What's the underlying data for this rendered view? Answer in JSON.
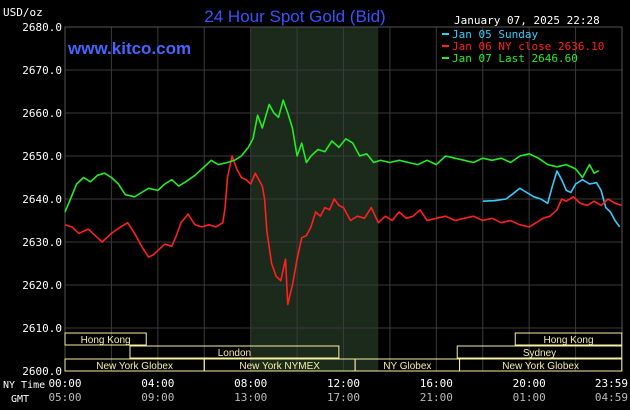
{
  "header": {
    "title": "24 Hour Spot Gold (Bid)",
    "unit": "USD/oz",
    "timestamp": "January 07, 2025 22:28",
    "site": "www.kitco.com"
  },
  "legend": [
    {
      "label": "Jan 05 Sunday",
      "color": "#33ccff"
    },
    {
      "label": "Jan 06 NY close 2636.10",
      "color": "#ff2020"
    },
    {
      "label": "Jan 07 Last 2646.60",
      "color": "#22ee22"
    }
  ],
  "time_rows": {
    "ny_label": "NY Time",
    "gmt_label": "GMT",
    "ny_ticks": [
      "00:00",
      "04:00",
      "08:00",
      "12:00",
      "16:00",
      "20:00",
      "23:59"
    ],
    "gmt_ticks": [
      "05:00",
      "09:00",
      "13:00",
      "17:00",
      "21:00",
      "01:00",
      "04:59"
    ]
  },
  "sessions": [
    {
      "label": "Hong Kong",
      "row": 0,
      "from": 0,
      "to": 3.5
    },
    {
      "label": "Hong Kong",
      "row": 0,
      "from": 19.4,
      "to": 23.99
    },
    {
      "label": "London",
      "row": 1,
      "from": 2.8,
      "to": 11.8
    },
    {
      "label": "Sydney",
      "row": 1,
      "from": 16.9,
      "to": 23.99
    },
    {
      "label": "New York Globex",
      "row": 2,
      "from": 0,
      "to": 6.0
    },
    {
      "label": "New York NYMEX",
      "row": 2,
      "from": 6.0,
      "to": 12.5
    },
    {
      "label": "NY Globex",
      "row": 2,
      "from": 12.5,
      "to": 17.0
    },
    {
      "label": "New York Globex",
      "row": 2,
      "from": 17.0,
      "to": 23.99
    }
  ],
  "colors": {
    "background": "#000000",
    "grid": "#3a3a3a",
    "highlight": "#1c2a1c",
    "title": "#3355ff",
    "site": "#4466ff",
    "session_fill": "#f6f0a0",
    "session_border": "#b8b070",
    "axis_text": "#ffffff"
  },
  "chart_data": {
    "type": "line",
    "title": "24 Hour Spot Gold (Bid)",
    "ylabel": "USD/oz",
    "ylim": [
      2600,
      2680
    ],
    "yticks": [
      "2600.0",
      "2610.0",
      "2620.0",
      "2630.0",
      "2640.0",
      "2650.0",
      "2660.0",
      "2670.0",
      "2680.0"
    ],
    "xlim": [
      0,
      24
    ],
    "highlight_hours": [
      8.0,
      13.5
    ],
    "series": [
      {
        "name": "Jan 05 Sunday",
        "color": "#33ccff",
        "x": [
          18.0,
          18.5,
          19.0,
          19.3,
          19.6,
          19.9,
          20.2,
          20.5,
          20.8,
          21.0,
          21.2,
          21.4,
          21.6,
          21.8,
          22.0,
          22.3,
          22.6,
          22.9,
          23.1,
          23.3,
          23.5,
          23.7,
          23.9
        ],
        "values": [
          2639.5,
          2639.6,
          2640.0,
          2641.2,
          2642.5,
          2641.5,
          2640.5,
          2640.0,
          2639.0,
          2643.0,
          2646.5,
          2644.5,
          2642.0,
          2641.5,
          2643.5,
          2644.5,
          2643.5,
          2643.8,
          2642.0,
          2638.0,
          2637.0,
          2635.0,
          2633.5
        ]
      },
      {
        "name": "Jan 06 NY close 2636.10",
        "color": "#ff2020",
        "x": [
          0,
          0.3,
          0.6,
          1.0,
          1.3,
          1.6,
          2.0,
          2.4,
          2.7,
          3.0,
          3.3,
          3.6,
          3.8,
          4.0,
          4.3,
          4.6,
          4.8,
          5.0,
          5.3,
          5.6,
          5.9,
          6.2,
          6.5,
          6.8,
          6.9,
          7.0,
          7.2,
          7.4,
          7.6,
          7.8,
          8.0,
          8.2,
          8.3,
          8.5,
          8.6,
          8.7,
          8.9,
          9.1,
          9.3,
          9.5,
          9.6,
          9.8,
          10.0,
          10.2,
          10.4,
          10.6,
          10.8,
          11.0,
          11.2,
          11.4,
          11.6,
          11.8,
          12.0,
          12.3,
          12.6,
          12.9,
          13.2,
          13.5,
          13.8,
          14.1,
          14.4,
          14.7,
          15.0,
          15.3,
          15.6,
          16.0,
          16.4,
          16.8,
          17.2,
          17.6,
          18.0,
          18.4,
          18.8,
          19.2,
          19.6,
          20.0,
          20.3,
          20.6,
          20.9,
          21.2,
          21.4,
          21.6,
          21.9,
          22.2,
          22.5,
          22.8,
          23.1,
          23.4,
          23.7,
          23.99
        ],
        "values": [
          2634.0,
          2633.5,
          2632.0,
          2633.0,
          2631.5,
          2630.0,
          2632.0,
          2633.5,
          2634.5,
          2632.0,
          2629.0,
          2626.5,
          2627.0,
          2628.0,
          2629.5,
          2629.0,
          2631.5,
          2634.5,
          2636.5,
          2634.0,
          2633.5,
          2634.0,
          2633.5,
          2634.5,
          2638.0,
          2645.0,
          2650.0,
          2647.0,
          2645.0,
          2644.5,
          2643.5,
          2646.0,
          2645.0,
          2643.0,
          2640.0,
          2632.5,
          2625.0,
          2622.0,
          2621.0,
          2626.0,
          2615.5,
          2620.0,
          2626.0,
          2631.0,
          2631.5,
          2633.5,
          2637.0,
          2636.0,
          2638.0,
          2637.5,
          2640.0,
          2638.5,
          2638.0,
          2635.0,
          2636.0,
          2635.5,
          2638.0,
          2634.5,
          2636.0,
          2635.0,
          2637.0,
          2635.5,
          2636.0,
          2637.5,
          2635.0,
          2635.5,
          2636.0,
          2635.0,
          2635.5,
          2636.0,
          2635.0,
          2635.5,
          2634.5,
          2635.0,
          2634.0,
          2633.5,
          2634.5,
          2635.5,
          2636.0,
          2637.5,
          2640.0,
          2639.5,
          2640.5,
          2639.0,
          2638.5,
          2639.5,
          2638.5,
          2640.0,
          2639.0,
          2638.5
        ]
      },
      {
        "name": "Jan 07 Last 2646.60",
        "color": "#22ee22",
        "x": [
          0,
          0.2,
          0.5,
          0.8,
          1.1,
          1.4,
          1.7,
          2.0,
          2.3,
          2.6,
          3.0,
          3.3,
          3.6,
          4.0,
          4.3,
          4.6,
          4.9,
          5.2,
          5.6,
          6.0,
          6.3,
          6.6,
          7.0,
          7.3,
          7.6,
          7.9,
          8.1,
          8.3,
          8.5,
          8.8,
          9.0,
          9.2,
          9.4,
          9.6,
          9.8,
          10.0,
          10.2,
          10.4,
          10.6,
          10.9,
          11.2,
          11.5,
          11.8,
          12.1,
          12.4,
          12.7,
          13.0,
          13.3,
          13.6,
          14.0,
          14.4,
          14.8,
          15.2,
          15.6,
          16.0,
          16.4,
          16.8,
          17.2,
          17.6,
          18.0,
          18.4,
          18.8,
          19.2,
          19.6,
          20.0,
          20.4,
          20.8,
          21.2,
          21.6,
          22.0,
          22.3,
          22.6,
          22.8,
          23.0
        ],
        "values": [
          2637.0,
          2639.5,
          2643.5,
          2645.0,
          2644.0,
          2645.5,
          2646.0,
          2645.0,
          2643.5,
          2641.0,
          2640.5,
          2641.5,
          2642.5,
          2642.0,
          2643.5,
          2644.5,
          2643.0,
          2644.0,
          2645.5,
          2647.5,
          2649.0,
          2648.0,
          2648.5,
          2649.0,
          2650.0,
          2652.0,
          2654.0,
          2659.5,
          2656.5,
          2662.0,
          2660.0,
          2659.0,
          2663.0,
          2660.0,
          2656.5,
          2650.0,
          2653.0,
          2648.5,
          2650.0,
          2651.5,
          2651.0,
          2653.5,
          2652.0,
          2654.0,
          2653.0,
          2650.0,
          2650.5,
          2648.5,
          2649.0,
          2648.5,
          2649.0,
          2648.5,
          2648.0,
          2649.0,
          2648.0,
          2650.0,
          2649.5,
          2649.0,
          2648.5,
          2649.5,
          2649.0,
          2649.5,
          2648.5,
          2650.0,
          2650.5,
          2649.5,
          2648.0,
          2647.5,
          2648.0,
          2647.0,
          2645.0,
          2648.0,
          2646.0,
          2646.6
        ]
      }
    ]
  }
}
